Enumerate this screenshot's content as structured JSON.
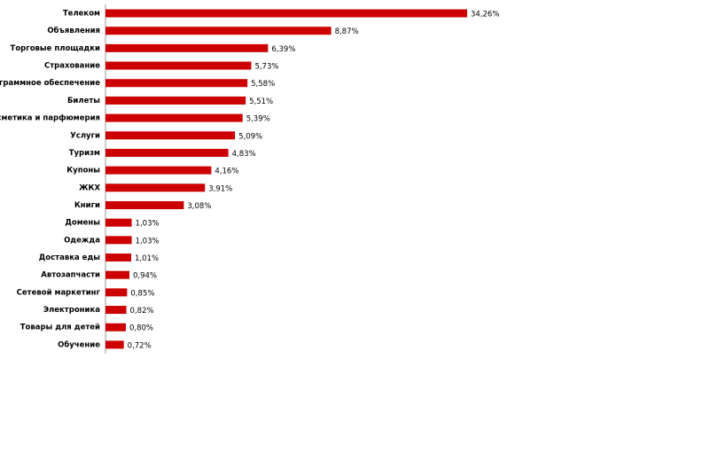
{
  "chart_data": {
    "type": "bar",
    "orientation": "horizontal",
    "color": "#cc0000",
    "categories": [
      "Телеком",
      "Объявления",
      "Торговые площадки",
      "Страхование",
      "Программное обеспечение",
      "Билеты",
      "Косметика и парфюмерия",
      "Услуги",
      "Туризм",
      "Купоны",
      "ЖКХ",
      "Книги",
      "Домены",
      "Одежда",
      "Доставка еды",
      "Автозапчасти",
      "Сетевой маркетинг",
      "Электроника",
      "Товары для детей",
      "Обучение"
    ],
    "values": [
      34.26,
      8.87,
      6.39,
      5.73,
      5.58,
      5.51,
      5.39,
      5.09,
      4.83,
      4.16,
      3.91,
      3.08,
      1.03,
      1.03,
      1.01,
      0.94,
      0.85,
      0.82,
      0.8,
      0.72
    ],
    "value_labels": [
      "34,26%",
      "8,87%",
      "6,39%",
      "5,73%",
      "5,58%",
      "5,51%",
      "5,39%",
      "5,09%",
      "4,83%",
      "4,16%",
      "3,91%",
      "3,08%",
      "1,03%",
      "1,03%",
      "1,01%",
      "0,94%",
      "0,85%",
      "0,82%",
      "0,80%",
      "0,72%"
    ]
  }
}
